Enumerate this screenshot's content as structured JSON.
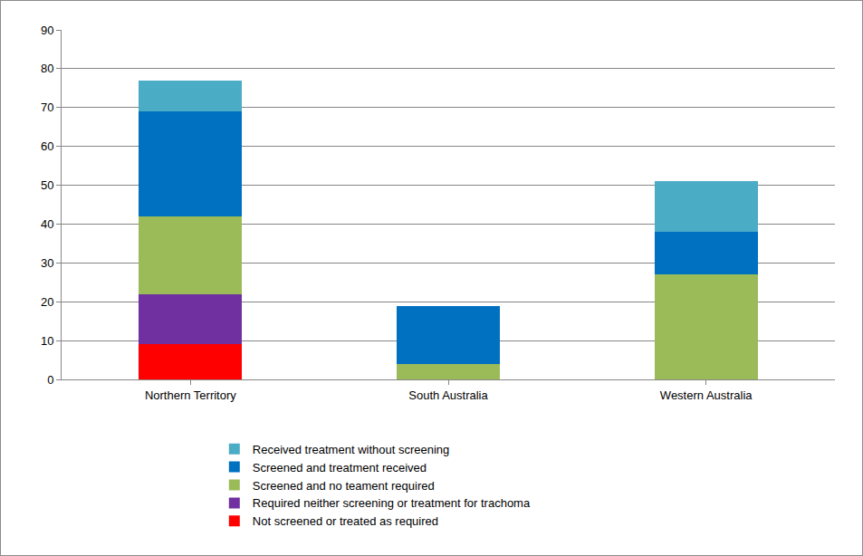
{
  "chart_data": {
    "type": "bar",
    "stacked": true,
    "grid": true,
    "legend": "bottom",
    "categories": [
      "Northern Territory",
      "South Australia",
      "Western Australia"
    ],
    "series": [
      {
        "name": "Not screened or treated as required",
        "color": "#ff0000",
        "values": [
          9,
          0,
          0
        ]
      },
      {
        "name": "Required neither screening or treatment for trachoma",
        "color": "#7030a0",
        "values": [
          13,
          0,
          0
        ]
      },
      {
        "name": "Screened and no teament required",
        "color": "#9bbb59",
        "values": [
          20,
          4,
          27
        ]
      },
      {
        "name": "Screened and treatment received",
        "color": "#0070c0",
        "values": [
          27,
          15,
          11
        ]
      },
      {
        "name": "Received treatment without screening",
        "color": "#4bacc6",
        "values": [
          8,
          0,
          13
        ]
      }
    ],
    "ylim": [
      0,
      90
    ],
    "yticks": [
      0,
      10,
      20,
      30,
      40,
      50,
      60,
      70,
      80,
      90
    ]
  }
}
